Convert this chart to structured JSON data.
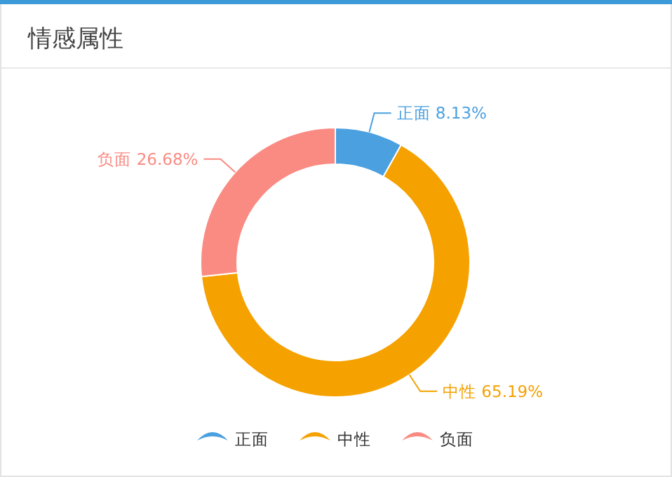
{
  "chart_data": {
    "type": "donut",
    "title": "情感属性",
    "categories": [
      "正面",
      "中性",
      "负面"
    ],
    "values": [
      8.13,
      65.19,
      26.68
    ],
    "colors": [
      "#4ba0e0",
      "#f5a100",
      "#f98b82"
    ],
    "value_labels": [
      "8.13%",
      "65.19%",
      "26.68%"
    ],
    "legend": "bottom"
  }
}
